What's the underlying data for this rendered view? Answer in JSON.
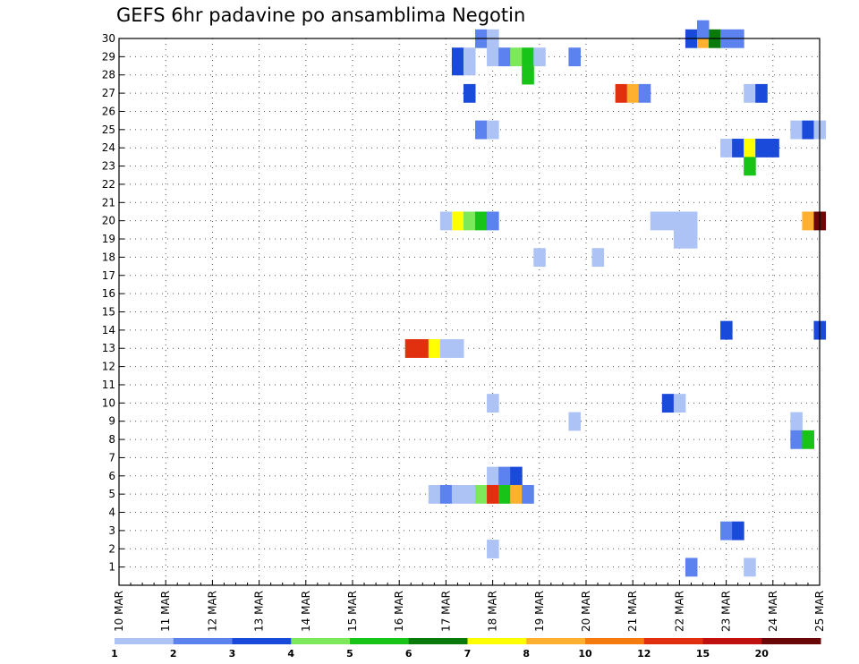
{
  "chart_data": {
    "type": "heatmap",
    "title": "GEFS 6hr padavine po ansamblima Negotin",
    "xlabel": "",
    "ylabel": "",
    "x_tick_labels": [
      "10 MAR",
      "11 MAR",
      "12 MAR",
      "13 MAR",
      "14 MAR",
      "15 MAR",
      "16 MAR",
      "17 MAR",
      "18 MAR",
      "19 MAR",
      "20 MAR",
      "21 MAR",
      "22 MAR",
      "23 MAR",
      "24 MAR",
      "25 MAR"
    ],
    "y_tick_labels": [
      "1",
      "2",
      "3",
      "4",
      "5",
      "6",
      "7",
      "8",
      "9",
      "10",
      "11",
      "12",
      "13",
      "14",
      "15",
      "16",
      "17",
      "18",
      "19",
      "20",
      "21",
      "22",
      "23",
      "24",
      "25",
      "26",
      "27",
      "28",
      "29",
      "30"
    ],
    "xlim_days": [
      0,
      15
    ],
    "ylim_members": [
      0,
      30
    ],
    "grid": "dotted",
    "legend": {
      "position": "bottom",
      "colors": [
        "#aec3f5",
        "#5b82ee",
        "#1a4ad9",
        "#7de85a",
        "#19c419",
        "#0a7a0a",
        "#ffff00",
        "#ffb030",
        "#f57a10",
        "#e03010",
        "#c01010",
        "#6a0808"
      ],
      "labels": [
        "1",
        "2",
        "3",
        "4",
        "5",
        "6",
        "7",
        "8",
        "10",
        "12",
        "15",
        "20"
      ]
    },
    "cell_width_days": 0.25,
    "cells": [
      {
        "x": 7.75,
        "m": 30,
        "c": 1
      },
      {
        "x": 8.0,
        "m": 30,
        "c": 0
      },
      {
        "x": 12.25,
        "m": 30,
        "c": 2
      },
      {
        "x": 12.5,
        "m": 30,
        "c": 7
      },
      {
        "x": 12.75,
        "m": 30,
        "c": 5
      },
      {
        "x": 13.0,
        "m": 30,
        "c": 1
      },
      {
        "x": 13.25,
        "m": 30,
        "c": 1
      },
      {
        "x": 7.25,
        "m": 29,
        "c": 2
      },
      {
        "x": 7.5,
        "m": 29,
        "c": 0
      },
      {
        "x": 8.0,
        "m": 29,
        "c": 0
      },
      {
        "x": 8.25,
        "m": 29,
        "c": 1
      },
      {
        "x": 8.5,
        "m": 29,
        "c": 3
      },
      {
        "x": 8.75,
        "m": 29,
        "c": 4
      },
      {
        "x": 9.0,
        "m": 29,
        "c": 0
      },
      {
        "x": 9.75,
        "m": 29,
        "c": 1
      },
      {
        "x": 8.75,
        "m": 28,
        "c": 3
      },
      {
        "x": 7.5,
        "m": 27,
        "c": 2
      },
      {
        "x": 10.75,
        "m": 27,
        "c": 9
      },
      {
        "x": 11.0,
        "m": 27,
        "c": 7
      },
      {
        "x": 11.25,
        "m": 27,
        "c": 1
      },
      {
        "x": 13.5,
        "m": 27,
        "c": 0
      },
      {
        "x": 13.75,
        "m": 27,
        "c": 2
      },
      {
        "x": 7.75,
        "m": 25,
        "c": 1
      },
      {
        "x": 8.0,
        "m": 25,
        "c": 0
      },
      {
        "x": 14.5,
        "m": 25,
        "c": 0
      },
      {
        "x": 14.75,
        "m": 25,
        "c": 2
      },
      {
        "x": 15.0,
        "m": 25,
        "c": 0
      },
      {
        "x": 13.0,
        "m": 24,
        "c": 0
      },
      {
        "x": 13.25,
        "m": 24,
        "c": 2
      },
      {
        "x": 13.5,
        "m": 24,
        "c": 6
      },
      {
        "x": 13.75,
        "m": 24,
        "c": 2
      },
      {
        "x": 14.0,
        "m": 24,
        "c": 2
      },
      {
        "x": 13.5,
        "m": 23,
        "c": 4
      },
      {
        "x": 7.0,
        "m": 20,
        "c": 0
      },
      {
        "x": 7.25,
        "m": 20,
        "c": 6
      },
      {
        "x": 7.5,
        "m": 20,
        "c": 3
      },
      {
        "x": 7.75,
        "m": 20,
        "c": 4
      },
      {
        "x": 8.0,
        "m": 20,
        "c": 1
      },
      {
        "x": 11.5,
        "m": 20,
        "c": 0
      },
      {
        "x": 11.75,
        "m": 20,
        "c": 0
      },
      {
        "x": 12.0,
        "m": 20,
        "c": 0
      },
      {
        "x": 12.25,
        "m": 20,
        "c": 0
      },
      {
        "x": 14.75,
        "m": 20,
        "c": 7
      },
      {
        "x": 15.0,
        "m": 20,
        "c": 11
      },
      {
        "x": 12.0,
        "m": 19,
        "c": 0
      },
      {
        "x": 12.25,
        "m": 19,
        "c": 0
      },
      {
        "x": 9.0,
        "m": 18,
        "c": 0
      },
      {
        "x": 10.25,
        "m": 18,
        "c": 0
      },
      {
        "x": 13.0,
        "m": 14,
        "c": 2
      },
      {
        "x": 15.0,
        "m": 14,
        "c": 2
      },
      {
        "x": 6.25,
        "m": 13,
        "c": 9
      },
      {
        "x": 6.5,
        "m": 13,
        "c": 9
      },
      {
        "x": 6.75,
        "m": 13,
        "c": 6
      },
      {
        "x": 7.0,
        "m": 13,
        "c": 0
      },
      {
        "x": 7.25,
        "m": 13,
        "c": 0
      },
      {
        "x": 8.0,
        "m": 10,
        "c": 0
      },
      {
        "x": 11.75,
        "m": 10,
        "c": 2
      },
      {
        "x": 12.0,
        "m": 10,
        "c": 0
      },
      {
        "x": 9.75,
        "m": 9,
        "c": 0
      },
      {
        "x": 14.5,
        "m": 9,
        "c": 0
      },
      {
        "x": 14.5,
        "m": 8,
        "c": 1
      },
      {
        "x": 14.75,
        "m": 8,
        "c": 4
      },
      {
        "x": 8.0,
        "m": 6,
        "c": 0
      },
      {
        "x": 8.25,
        "m": 6,
        "c": 1
      },
      {
        "x": 8.5,
        "m": 6,
        "c": 2
      },
      {
        "x": 6.75,
        "m": 5,
        "c": 0
      },
      {
        "x": 7.0,
        "m": 5,
        "c": 1
      },
      {
        "x": 7.25,
        "m": 5,
        "c": 0
      },
      {
        "x": 7.5,
        "m": 5,
        "c": 0
      },
      {
        "x": 7.75,
        "m": 5,
        "c": 3
      },
      {
        "x": 8.0,
        "m": 5,
        "c": 9
      },
      {
        "x": 8.25,
        "m": 5,
        "c": 4
      },
      {
        "x": 8.5,
        "m": 5,
        "c": 7
      },
      {
        "x": 8.75,
        "m": 5,
        "c": 1
      },
      {
        "x": 13.0,
        "m": 3,
        "c": 1
      },
      {
        "x": 13.25,
        "m": 3,
        "c": 2
      },
      {
        "x": 8.0,
        "m": 2,
        "c": 0
      },
      {
        "x": 12.25,
        "m": 1,
        "c": 1
      },
      {
        "x": 13.5,
        "m": 1,
        "c": 0
      }
    ],
    "half_cells": [
      {
        "x": 7.25,
        "m": 28.5,
        "c": 2
      },
      {
        "x": 7.5,
        "m": 28.5,
        "c": 0
      },
      {
        "x": 8.75,
        "m": 28.0,
        "c": 4
      },
      {
        "x": 12.5,
        "m": 30.5,
        "c": 1
      }
    ]
  }
}
